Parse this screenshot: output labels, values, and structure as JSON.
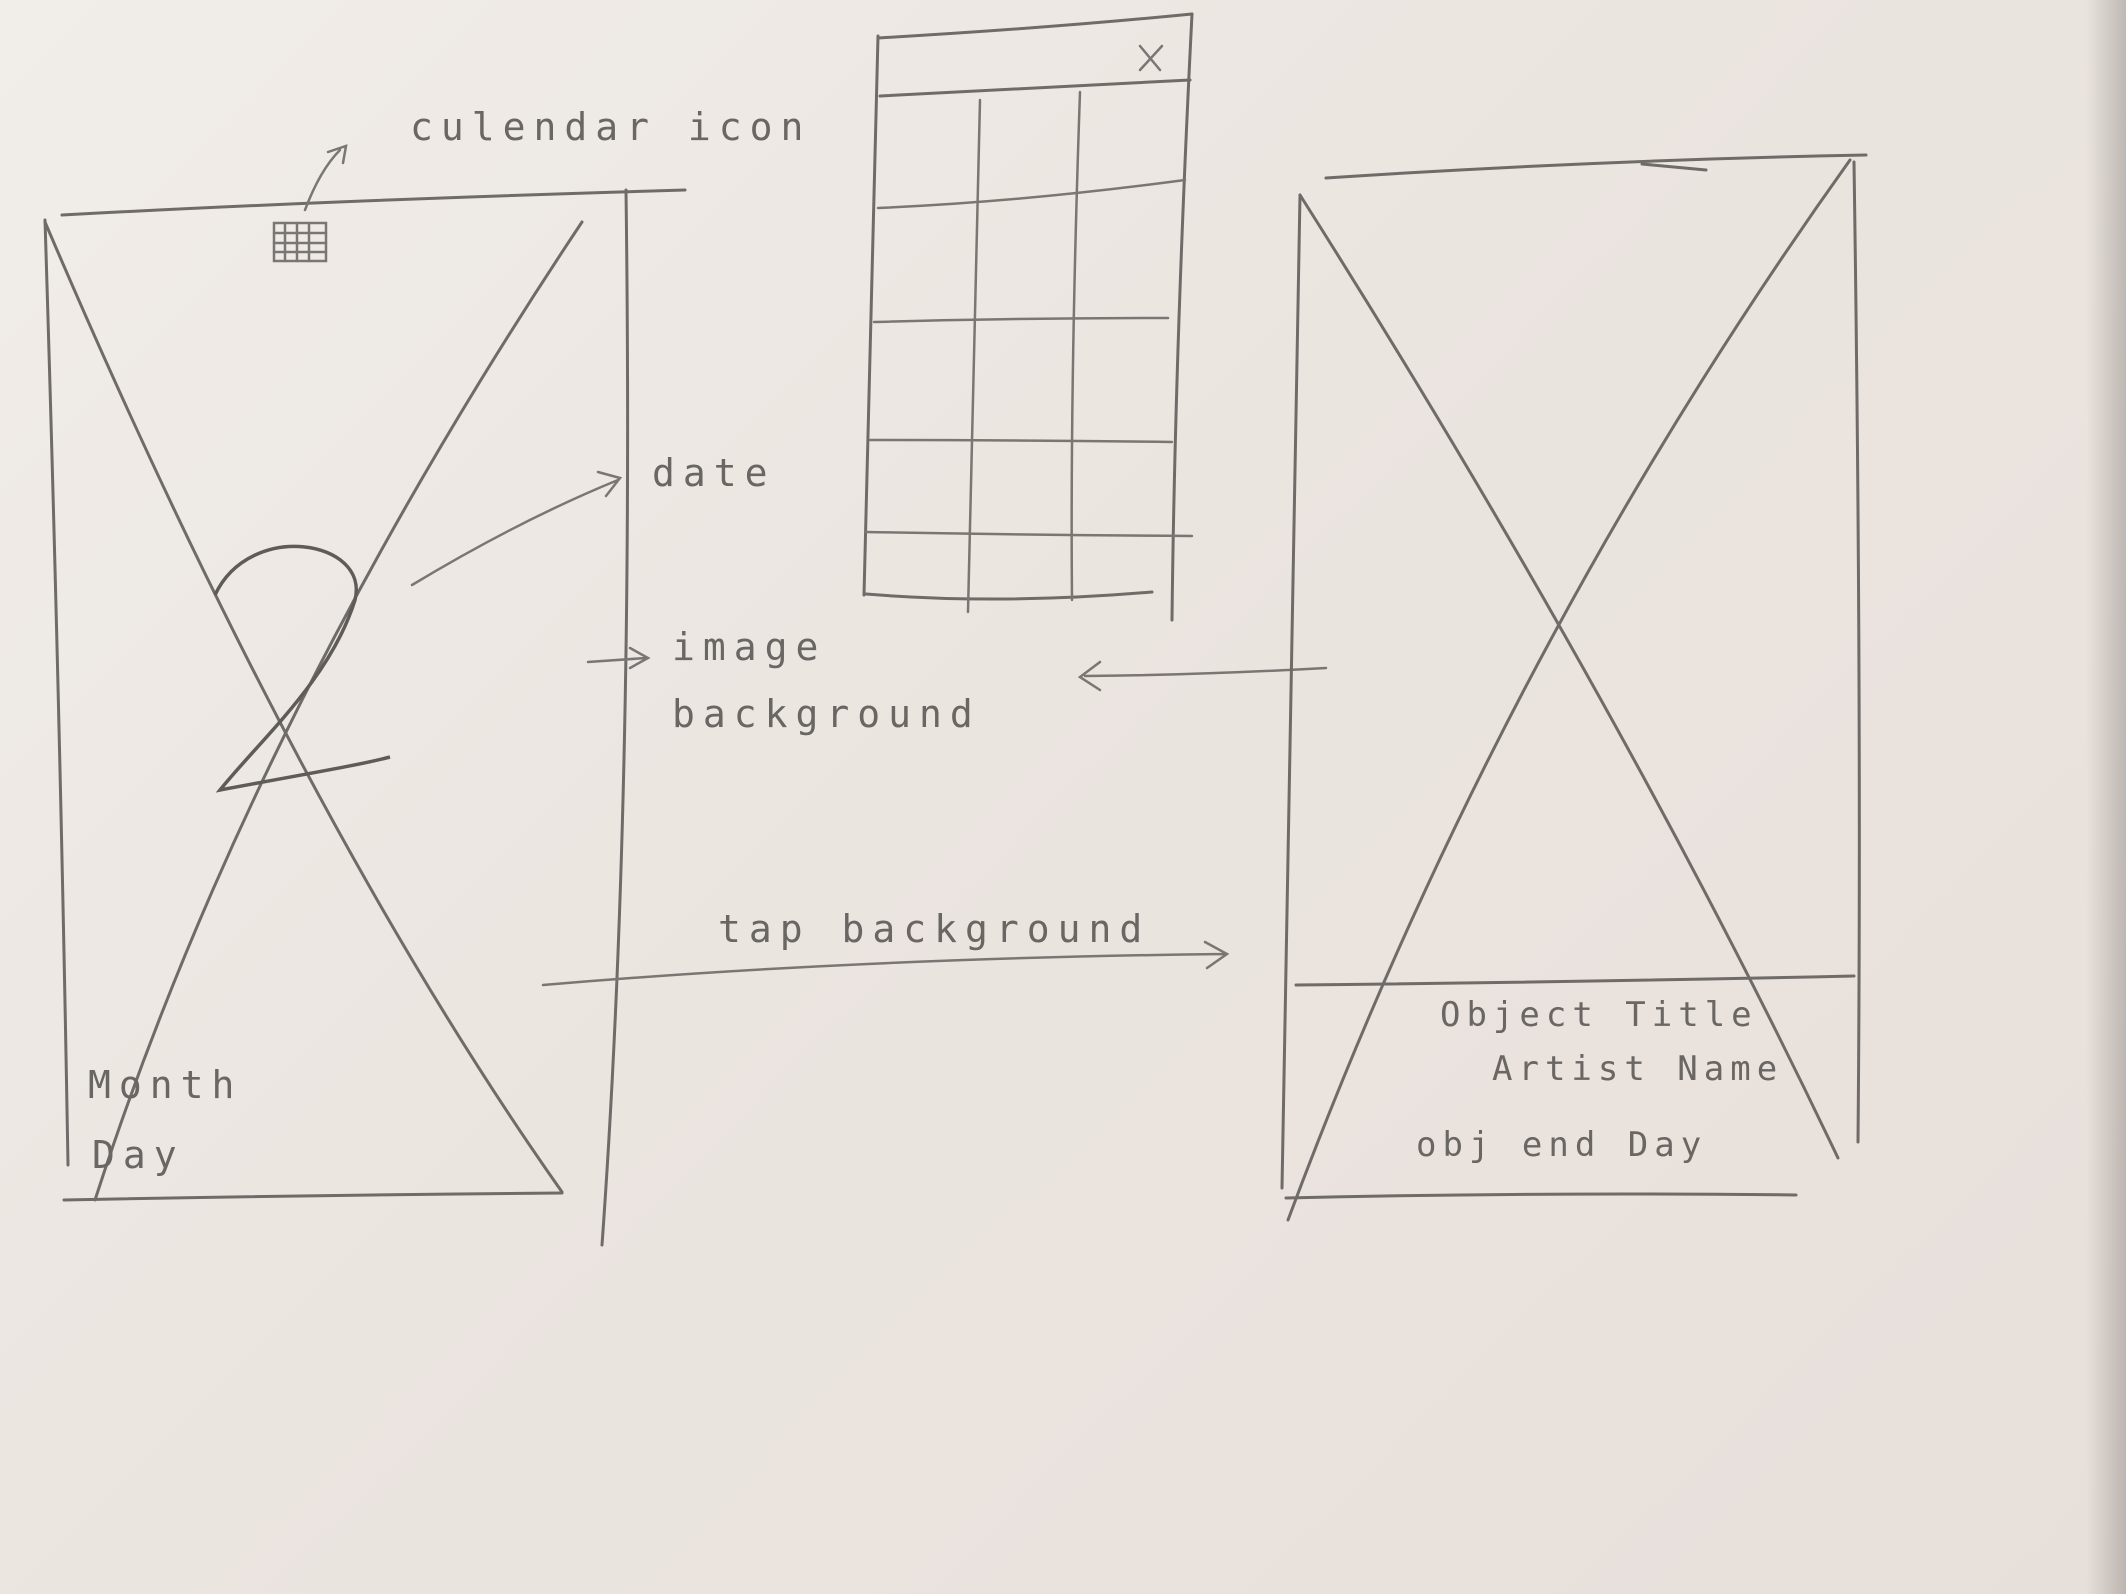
{
  "annotations": {
    "calendar_icon": "culendar icon",
    "date": "date",
    "image_background_line1": "image",
    "image_background_line2": "background",
    "tap_background": "tap background"
  },
  "screen_home": {
    "date_digit": "2",
    "month_label": "Month",
    "day_label": "Day"
  },
  "screen_detail": {
    "object_title": "Object Title",
    "artist_name": "Artist Name",
    "object_end_day": "obj end Day"
  },
  "calendar_popup": {
    "close_glyph": "X"
  }
}
